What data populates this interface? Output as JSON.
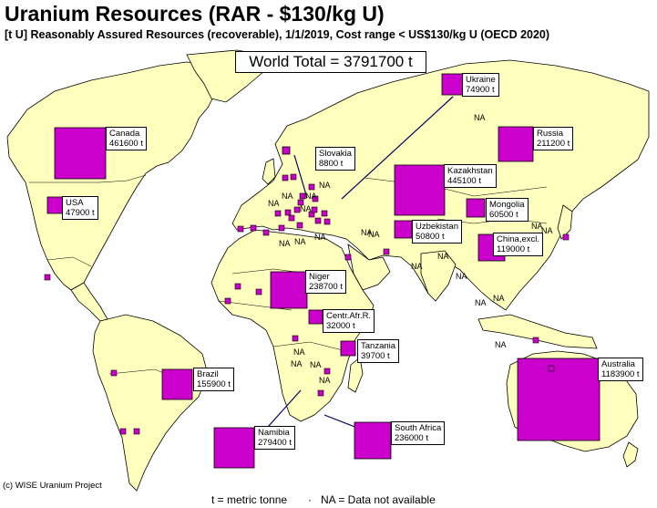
{
  "title": "Uranium Resources (RAR - $130/kg U)",
  "subtitle": "[t U] Reasonably Assured Resources (recoverable), 1/1/2019, Cost range < US$130/kg U  (OECD 2020)",
  "world_total": "World Total = 3791700 t",
  "credit": "(c) WISE Uranium Project",
  "legend": {
    "unit": "t = metric tonne",
    "separator": "·",
    "na": "NA = Data not available"
  },
  "na_label": "NA",
  "colors": {
    "ocean": "#ffffff",
    "land": "#ffffbe",
    "marker": "#cc00cc",
    "leader": "#000066"
  },
  "countries": [
    {
      "name": "Canada",
      "value": "461600 t",
      "tonnes": 461600
    },
    {
      "name": "USA",
      "value": "47900 t",
      "tonnes": 47900
    },
    {
      "name": "Brazil",
      "value": "155900 t",
      "tonnes": 155900
    },
    {
      "name": "Slovakia",
      "value": "8800 t",
      "tonnes": 8800
    },
    {
      "name": "Ukraine",
      "value": "74900 t",
      "tonnes": 74900
    },
    {
      "name": "Russia",
      "value": "211200 t",
      "tonnes": 211200
    },
    {
      "name": "Kazakhstan",
      "value": "445100 t",
      "tonnes": 445100
    },
    {
      "name": "Mongolia",
      "value": "60500 t",
      "tonnes": 60500
    },
    {
      "name": "Uzbekistan",
      "value": "50800 t",
      "tonnes": 50800
    },
    {
      "name": "China,excl.",
      "value": "119000 t",
      "tonnes": 119000
    },
    {
      "name": "Niger",
      "value": "238700 t",
      "tonnes": 238700
    },
    {
      "name": "Centr.Afr.R.",
      "value": "32000 t",
      "tonnes": 32000
    },
    {
      "name": "Tanzania",
      "value": "39700 t",
      "tonnes": 39700
    },
    {
      "name": "Namibia",
      "value": "279400 t",
      "tonnes": 279400
    },
    {
      "name": "South Africa",
      "value": "236000 t",
      "tonnes": 236000
    },
    {
      "name": "Australia",
      "value": "1183900 t",
      "tonnes": 1183900
    }
  ]
}
